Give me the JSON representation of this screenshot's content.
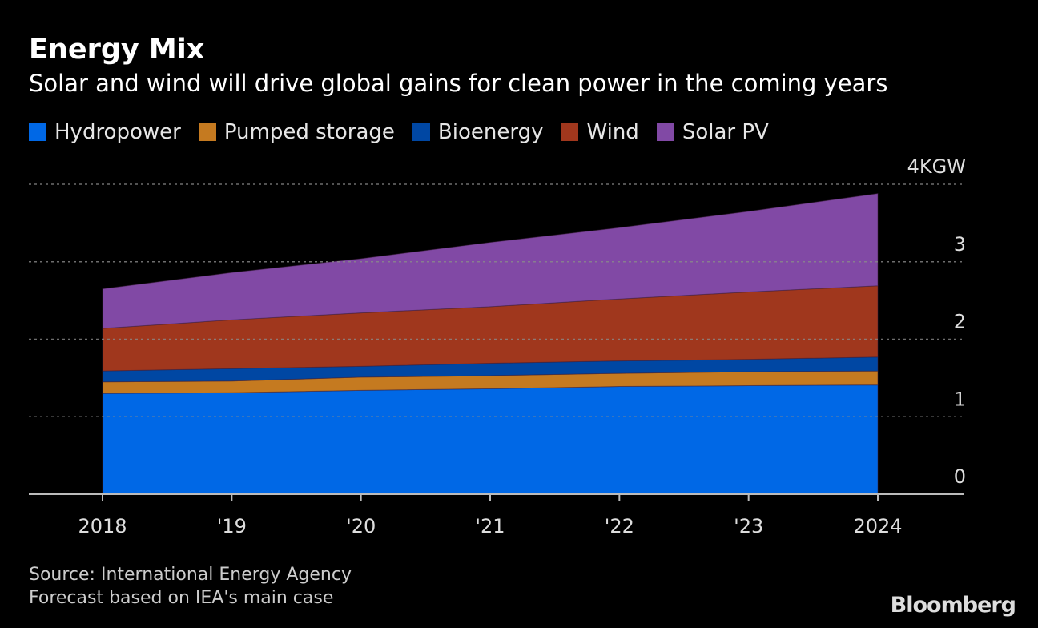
{
  "header": {
    "title": "Energy Mix",
    "subtitle": "Solar and wind will drive global gains for clean power in the coming years"
  },
  "footer": {
    "source": "Source: International Energy Agency",
    "note": "Forecast based on IEA's main case",
    "logo": "Bloomberg"
  },
  "chart_data": {
    "type": "area",
    "stacked": true,
    "title": "Energy Mix",
    "subtitle": "Solar and wind will drive global gains for clean power in the coming years",
    "unit": "KGW",
    "x": [
      2018,
      2019,
      2020,
      2021,
      2022,
      2023,
      2024
    ],
    "x_tick_labels": [
      "2018",
      "'19",
      "'20",
      "'21",
      "'22",
      "'23",
      "2024"
    ],
    "y_tick_labels": [
      "0",
      "1",
      "2",
      "3",
      "4KGW"
    ],
    "y_ticks": [
      0,
      1,
      2,
      3,
      4
    ],
    "ylim": [
      0,
      4
    ],
    "grid": true,
    "legend_placement": "top-left",
    "series": [
      {
        "name": "Hydropower",
        "color": "#0068e6",
        "values": [
          1.3,
          1.31,
          1.34,
          1.36,
          1.39,
          1.4,
          1.41
        ]
      },
      {
        "name": "Pumped storage",
        "color": "#c57a20",
        "values": [
          0.15,
          0.15,
          0.17,
          0.17,
          0.17,
          0.18,
          0.18
        ]
      },
      {
        "name": "Bioenergy",
        "color": "#0047a3",
        "values": [
          0.14,
          0.16,
          0.14,
          0.16,
          0.16,
          0.16,
          0.18
        ]
      },
      {
        "name": "Wind",
        "color": "#a0371d",
        "values": [
          0.55,
          0.63,
          0.69,
          0.73,
          0.8,
          0.87,
          0.92
        ]
      },
      {
        "name": "Solar PV",
        "color": "#8149a5",
        "values": [
          0.51,
          0.61,
          0.7,
          0.83,
          0.92,
          1.04,
          1.19
        ]
      }
    ]
  }
}
